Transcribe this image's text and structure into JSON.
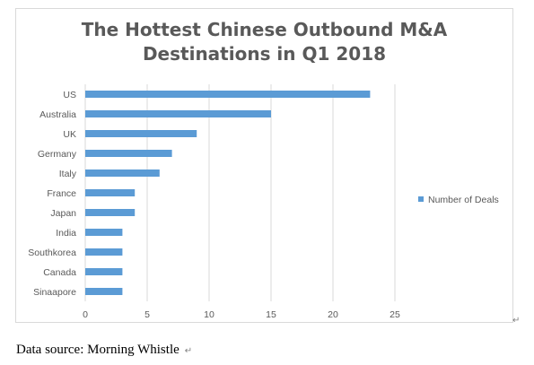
{
  "chart_data": {
    "type": "bar",
    "orientation": "horizontal",
    "title_lines": [
      "The Hottest Chinese Outbound M&A",
      "Destinations in Q1 2018"
    ],
    "categories": [
      "US",
      "Australia",
      "UK",
      "Germany",
      "Italy",
      "France",
      "Japan",
      "India",
      "Southkorea",
      "Canada",
      "Sinaapore"
    ],
    "series": [
      {
        "name": "Number of Deals",
        "values": [
          23,
          15,
          9,
          7,
          6,
          4,
          4,
          3,
          3,
          3,
          3
        ]
      }
    ],
    "xlim": [
      0,
      25
    ],
    "xticks": [
      0,
      5,
      10,
      15,
      20,
      25
    ],
    "grid": "vertical",
    "legend_position": "right",
    "bar_color": "#5b9bd5"
  },
  "caption": "Data source: Morning Whistle",
  "return_mark": "↵"
}
